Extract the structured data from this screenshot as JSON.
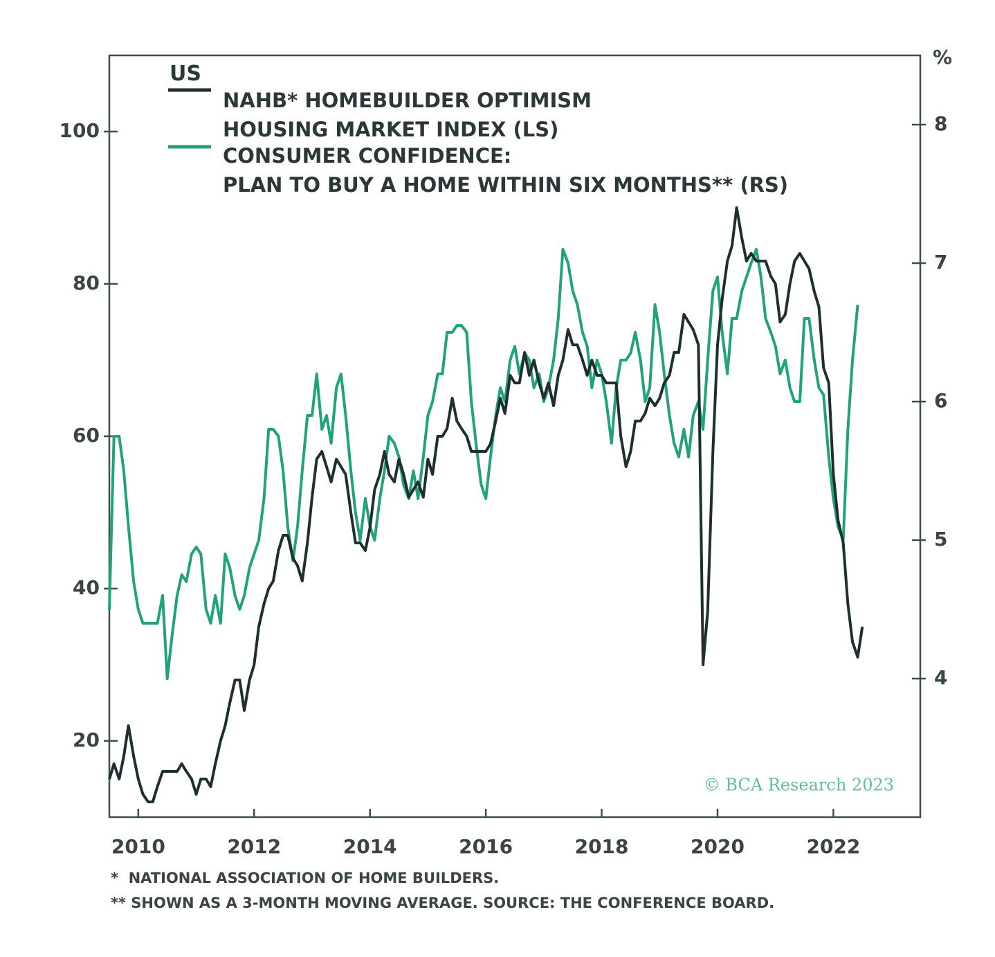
{
  "chart_data": {
    "type": "line",
    "title": "US",
    "y2label": "%",
    "annotations": [
      "© BCA Research 2023"
    ],
    "footnotes": [
      "*  NATIONAL ASSOCIATION OF HOME BUILDERS.",
      "** SHOWN AS A 3-MONTH MOVING AVERAGE. SOURCE: THE CONFERENCE BOARD."
    ],
    "x": [
      2010.0,
      2010.08,
      2010.17,
      2010.25,
      2010.33,
      2010.42,
      2010.5,
      2010.58,
      2010.67,
      2010.75,
      2010.83,
      2010.92,
      2011.0,
      2011.08,
      2011.17,
      2011.25,
      2011.33,
      2011.42,
      2011.5,
      2011.58,
      2011.67,
      2011.75,
      2011.83,
      2011.92,
      2012.0,
      2012.08,
      2012.17,
      2012.25,
      2012.33,
      2012.42,
      2012.5,
      2012.58,
      2012.67,
      2012.75,
      2012.83,
      2012.92,
      2013.0,
      2013.08,
      2013.17,
      2013.25,
      2013.33,
      2013.42,
      2013.5,
      2013.58,
      2013.67,
      2013.75,
      2013.83,
      2013.92,
      2014.0,
      2014.08,
      2014.17,
      2014.25,
      2014.33,
      2014.42,
      2014.5,
      2014.58,
      2014.67,
      2014.75,
      2014.83,
      2014.92,
      2015.0,
      2015.08,
      2015.17,
      2015.25,
      2015.33,
      2015.42,
      2015.5,
      2015.58,
      2015.67,
      2015.75,
      2015.83,
      2015.92,
      2016.0,
      2016.08,
      2016.17,
      2016.25,
      2016.33,
      2016.42,
      2016.5,
      2016.58,
      2016.67,
      2016.75,
      2016.83,
      2016.92,
      2017.0,
      2017.08,
      2017.17,
      2017.25,
      2017.33,
      2017.42,
      2017.5,
      2017.58,
      2017.67,
      2017.75,
      2017.83,
      2017.92,
      2018.0,
      2018.08,
      2018.17,
      2018.25,
      2018.33,
      2018.42,
      2018.5,
      2018.58,
      2018.67,
      2018.75,
      2018.83,
      2018.92,
      2019.0,
      2019.08,
      2019.17,
      2019.25,
      2019.33,
      2019.42,
      2019.5,
      2019.58,
      2019.67,
      2019.75,
      2019.83,
      2019.92,
      2020.0,
      2020.08,
      2020.17,
      2020.25,
      2020.33,
      2020.42,
      2020.5,
      2020.58,
      2020.67,
      2020.75,
      2020.83,
      2020.92,
      2021.0,
      2021.08,
      2021.17,
      2021.25,
      2021.33,
      2021.42,
      2021.5,
      2021.58,
      2021.67,
      2021.75,
      2021.83,
      2021.92,
      2022.0,
      2022.08,
      2022.17,
      2022.25,
      2022.33,
      2022.42,
      2022.5,
      2022.58,
      2022.67,
      2022.75,
      2022.83,
      2022.92,
      2023.0
    ],
    "series": [
      {
        "name": "NAHB* HOMEBUILDER OPTIMISM\nHOUSING MARKET INDEX (LS)",
        "color": "#1f2e30",
        "axis": "y",
        "values": [
          15,
          17,
          15,
          18,
          22,
          18,
          15,
          13,
          12,
          12,
          14,
          16,
          16,
          16,
          16,
          17,
          16,
          15,
          13,
          15,
          15,
          14,
          17,
          20,
          22,
          25,
          28,
          28,
          24,
          28,
          30,
          35,
          38,
          40,
          41,
          45,
          47,
          47,
          44,
          43,
          41,
          46,
          52,
          57,
          58,
          56,
          54,
          57,
          56,
          55,
          50,
          46,
          46,
          45,
          48,
          53,
          55,
          58,
          55,
          54,
          57,
          55,
          52,
          53,
          54,
          52,
          57,
          55,
          60,
          60,
          61,
          65,
          62,
          61,
          60,
          58,
          58,
          58,
          58,
          59,
          62,
          65,
          63,
          68,
          67,
          67,
          71,
          68,
          70,
          67,
          65,
          67,
          64,
          68,
          70,
          74,
          72,
          72,
          70,
          68,
          70,
          68,
          68,
          67,
          67,
          67,
          60,
          56,
          58,
          62,
          62,
          63,
          65,
          64,
          65,
          67,
          68,
          71,
          71,
          76,
          75,
          74,
          72,
          30,
          37,
          58,
          72,
          78,
          83,
          85,
          90,
          86,
          83,
          84,
          83,
          83,
          83,
          81,
          80,
          75,
          76,
          80,
          83,
          84,
          83,
          82,
          79,
          77,
          69,
          67,
          55,
          49,
          46,
          38,
          33,
          31,
          35
        ]
      },
      {
        "name": "CONSUMER CONFIDENCE:\nPLAN TO BUY A HOME WITHIN SIX MONTHS** (RS)",
        "color": "#22a27a",
        "axis": "y2",
        "values": [
          4.5,
          5.75,
          5.75,
          5.5,
          5.1,
          4.7,
          4.5,
          4.4,
          4.4,
          4.4,
          4.4,
          4.6,
          4.0,
          4.3,
          4.6,
          4.75,
          4.7,
          4.9,
          4.95,
          4.9,
          4.5,
          4.4,
          4.6,
          4.4,
          4.9,
          4.8,
          4.6,
          4.5,
          4.6,
          4.8,
          4.9,
          5.0,
          5.3,
          5.8,
          5.8,
          5.75,
          5.5,
          5.1,
          4.85,
          5.1,
          5.5,
          5.9,
          5.9,
          6.2,
          5.8,
          5.9,
          5.7,
          6.1,
          6.2,
          5.9,
          5.5,
          5.2,
          5.0,
          5.3,
          5.1,
          5.0,
          5.3,
          5.5,
          5.75,
          5.7,
          5.6,
          5.4,
          5.3,
          5.5,
          5.3,
          5.6,
          5.9,
          6.0,
          6.2,
          6.2,
          6.5,
          6.5,
          6.55,
          6.55,
          6.5,
          6.0,
          5.7,
          5.4,
          5.3,
          5.6,
          5.9,
          6.1,
          6.0,
          6.3,
          6.4,
          6.2,
          6.35,
          6.3,
          6.1,
          6.2,
          6.0,
          6.1,
          6.3,
          6.6,
          7.1,
          7.0,
          6.8,
          6.7,
          6.5,
          6.4,
          6.1,
          6.3,
          6.2,
          6.0,
          5.7,
          6.1,
          6.3,
          6.3,
          6.35,
          6.5,
          6.3,
          6.0,
          6.1,
          6.7,
          6.5,
          6.2,
          5.9,
          5.7,
          5.6,
          5.8,
          5.6,
          5.9,
          6.0,
          5.8,
          6.3,
          6.8,
          6.9,
          6.5,
          6.2,
          6.6,
          6.6,
          6.8,
          6.9,
          7.0,
          7.1,
          6.9,
          6.6,
          6.5,
          6.4,
          6.2,
          6.3,
          6.1,
          6.0,
          6.0,
          6.6,
          6.6,
          6.3,
          6.1,
          6.05,
          5.6,
          5.3,
          5.1,
          5.0,
          5.8,
          6.3,
          6.7,
          null
        ]
      }
    ],
    "xlim": [
      2010,
      2024
    ],
    "xticks": [
      {
        "value": 2010.5,
        "label": "2010"
      },
      {
        "value": 2012.5,
        "label": "2012"
      },
      {
        "value": 2014.5,
        "label": "2014"
      },
      {
        "value": 2016.5,
        "label": "2016"
      },
      {
        "value": 2018.5,
        "label": "2018"
      },
      {
        "value": 2020.5,
        "label": "2020"
      },
      {
        "value": 2022.5,
        "label": "2022"
      }
    ],
    "ylim": [
      10,
      110
    ],
    "yticks": [
      20,
      40,
      60,
      80,
      100
    ],
    "y2lim": [
      3,
      8.5
    ],
    "y2ticks": [
      4,
      5,
      6,
      7,
      8
    ],
    "grid": false
  }
}
